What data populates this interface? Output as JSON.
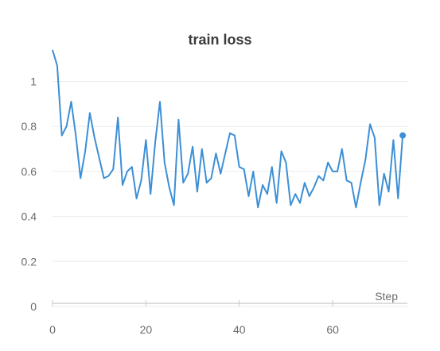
{
  "chart_data": {
    "type": "line",
    "title": "train loss",
    "xlabel": "Step",
    "ylabel": "",
    "xlim": [
      0,
      76
    ],
    "ylim": [
      0,
      1.15
    ],
    "xticks": [
      0,
      20,
      40,
      60
    ],
    "yticks": [
      0,
      0.2,
      0.4,
      0.6,
      0.8,
      1
    ],
    "ytick_labels": [
      "0",
      "0.2",
      "0.4",
      "0.6",
      "0.8",
      "1"
    ],
    "xtick_labels": [
      "0",
      "20",
      "40",
      "60"
    ],
    "grid": true,
    "color": "#3c8fd6",
    "series": [
      {
        "x": [
          0,
          1,
          2,
          3,
          4,
          5,
          6,
          7,
          8,
          9,
          10,
          11,
          12,
          13,
          14,
          15,
          16,
          17,
          18,
          19,
          20,
          21,
          22,
          23,
          24,
          25,
          26,
          27,
          28,
          29,
          30,
          31,
          32,
          33,
          34,
          35,
          36,
          37,
          38,
          39,
          40,
          41,
          42,
          43,
          44,
          45,
          46,
          47,
          48,
          49,
          50,
          51,
          52,
          53,
          54,
          55,
          56,
          57,
          58,
          59,
          60,
          61,
          62,
          63,
          64,
          65,
          66,
          67,
          68,
          69,
          70,
          71,
          72,
          73,
          74,
          75
        ],
        "y": [
          1.14,
          1.07,
          0.76,
          0.8,
          0.91,
          0.76,
          0.57,
          0.69,
          0.86,
          0.75,
          0.66,
          0.57,
          0.58,
          0.61,
          0.84,
          0.54,
          0.6,
          0.62,
          0.48,
          0.56,
          0.74,
          0.5,
          0.73,
          0.91,
          0.64,
          0.53,
          0.45,
          0.83,
          0.55,
          0.59,
          0.71,
          0.51,
          0.7,
          0.55,
          0.57,
          0.68,
          0.59,
          0.68,
          0.77,
          0.76,
          0.62,
          0.61,
          0.49,
          0.6,
          0.44,
          0.54,
          0.5,
          0.62,
          0.46,
          0.69,
          0.64,
          0.45,
          0.5,
          0.46,
          0.55,
          0.49,
          0.53,
          0.58,
          0.56,
          0.64,
          0.6,
          0.6,
          0.7,
          0.56,
          0.55,
          0.44,
          0.55,
          0.65,
          0.81,
          0.75,
          0.45,
          0.59,
          0.51,
          0.74,
          0.48,
          0.76
        ]
      }
    ]
  }
}
